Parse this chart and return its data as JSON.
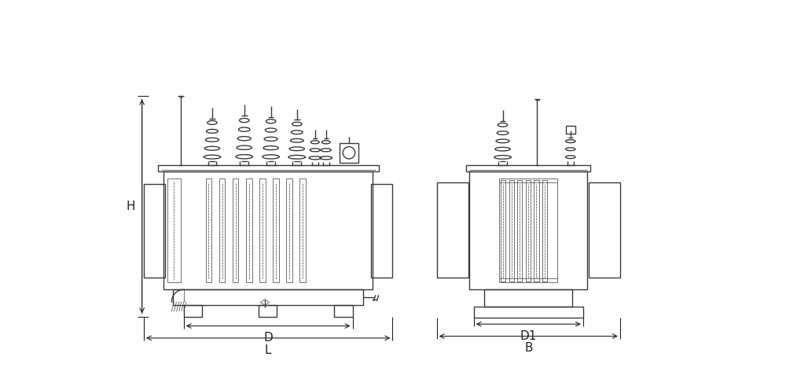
{
  "bg_color": "#ffffff",
  "line_color": "#3a3a3a",
  "line_width": 1.0,
  "thin_line": 0.5,
  "dim_line_color": "#222222",
  "fig_width": 10.0,
  "fig_height": 4.96,
  "labels": {
    "H": "H",
    "D": "D",
    "L": "L",
    "D1": "D1",
    "B": "B"
  },
  "font_size": 11
}
